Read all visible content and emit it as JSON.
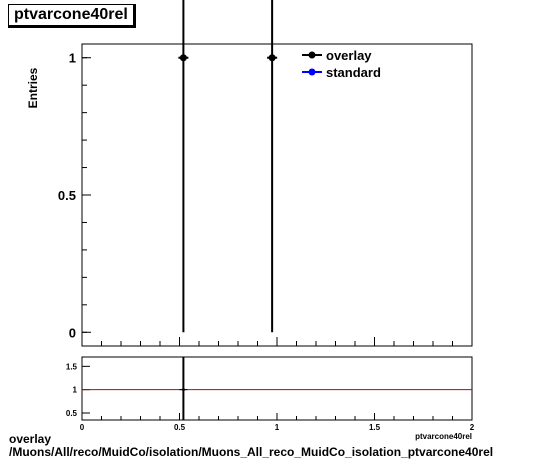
{
  "title": "ptvarcone40rel",
  "footer": {
    "line1": "overlay",
    "line2": "/Muons/All/reco/MuidCo/isolation/Muons_All_reco_MuidCo_isolation_ptvarcone40rel"
  },
  "chart_data": [
    {
      "type": "scatter",
      "panel": "main",
      "ylabel": "Entries",
      "xlabel": "ptvarcone40rel",
      "xlim": [
        0,
        2
      ],
      "ylim": [
        -0.05,
        1.05
      ],
      "yticks": [
        {
          "value": 0,
          "label": "0"
        },
        {
          "value": 0.5,
          "label": "0.5"
        },
        {
          "value": 1,
          "label": "1"
        }
      ],
      "legend_position": "top-right",
      "series": [
        {
          "name": "overlay",
          "color": "#000000",
          "points": [
            {
              "x": 0.52,
              "y": 1,
              "yerr": 1
            },
            {
              "x": 0.975,
              "y": 1,
              "yerr": 1
            }
          ]
        },
        {
          "name": "standard",
          "color": "#0000ff",
          "points": []
        }
      ]
    },
    {
      "type": "scatter",
      "panel": "ratio",
      "xlim": [
        0,
        2
      ],
      "ylim": [
        0.35,
        1.7
      ],
      "xticks": [
        {
          "value": 0,
          "label": "0"
        },
        {
          "value": 0.5,
          "label": "0.5"
        },
        {
          "value": 1,
          "label": "1"
        },
        {
          "value": 1.5,
          "label": "1.5"
        },
        {
          "value": 2,
          "label": "2"
        }
      ],
      "yticks": [
        {
          "value": 0.5,
          "label": "0.5"
        },
        {
          "value": 1,
          "label": "1"
        },
        {
          "value": 1.5,
          "label": "1.5"
        }
      ],
      "reference_line": {
        "y": 1,
        "color": "#cc0000"
      },
      "points": [
        {
          "x": 0.52,
          "y": 1,
          "yerr": 1
        }
      ]
    }
  ]
}
